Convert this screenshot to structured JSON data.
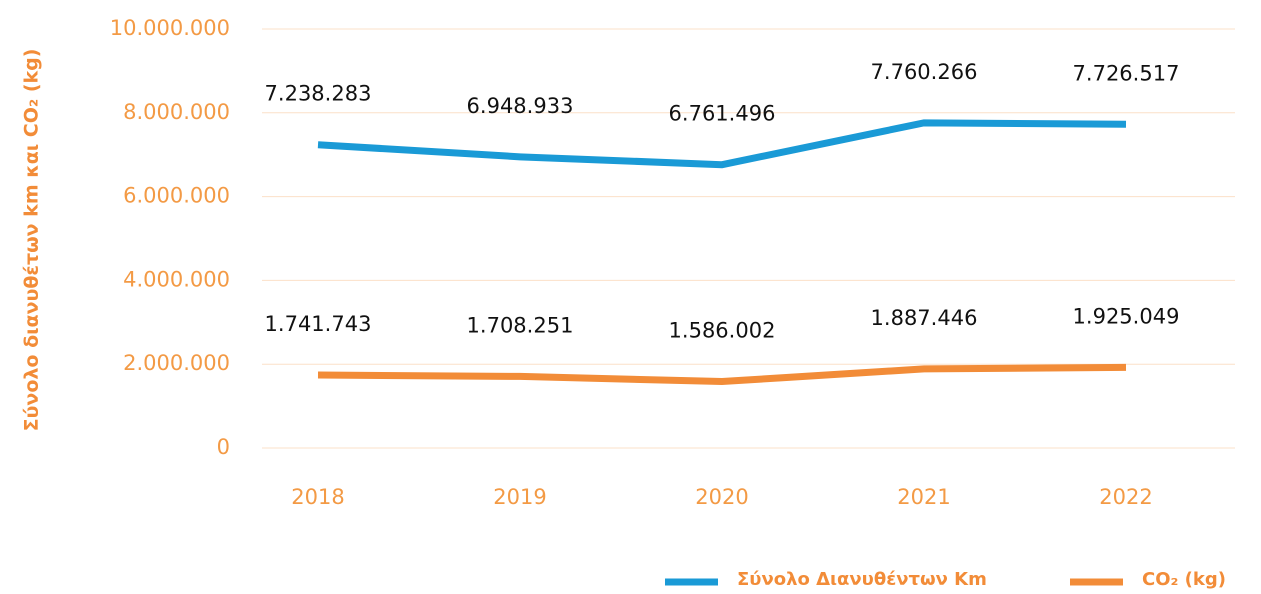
{
  "chart_data": {
    "type": "line",
    "y_label": "Σύνολο διανυθέτων km και CO₂ (kg)",
    "categories": [
      "2018",
      "2019",
      "2020",
      "2021",
      "2022"
    ],
    "series": [
      {
        "name": "Σύνολο Διανυθέντων Km",
        "color": "#1a9ad6",
        "values": [
          7238283,
          6948933,
          6761496,
          7760266,
          7726517
        ],
        "value_labels": [
          "7.238.283",
          "6.948.933",
          "6.761.496",
          "7.760.266",
          "7.726.517"
        ]
      },
      {
        "name": "CO₂ (kg)",
        "color": "#f28c38",
        "values": [
          1741743,
          1708251,
          1586002,
          1887446,
          1925049
        ],
        "value_labels": [
          "1.741.743",
          "1.708.251",
          "1.586.002",
          "1.887.446",
          "1.925.049"
        ]
      }
    ],
    "ylim": [
      0,
      10000000
    ],
    "yticks": [
      0,
      {
        "value": 2000000,
        "label": "2.000.000"
      },
      {
        "value": 4000000,
        "label": "4.000.000"
      },
      {
        "value": 6000000,
        "label": "6.000.000"
      },
      {
        "value": 8000000,
        "label": "8.000.000"
      },
      {
        "value": 10000000,
        "label": "10.000.000"
      }
    ],
    "grid": true,
    "legend": "bottom-right"
  }
}
